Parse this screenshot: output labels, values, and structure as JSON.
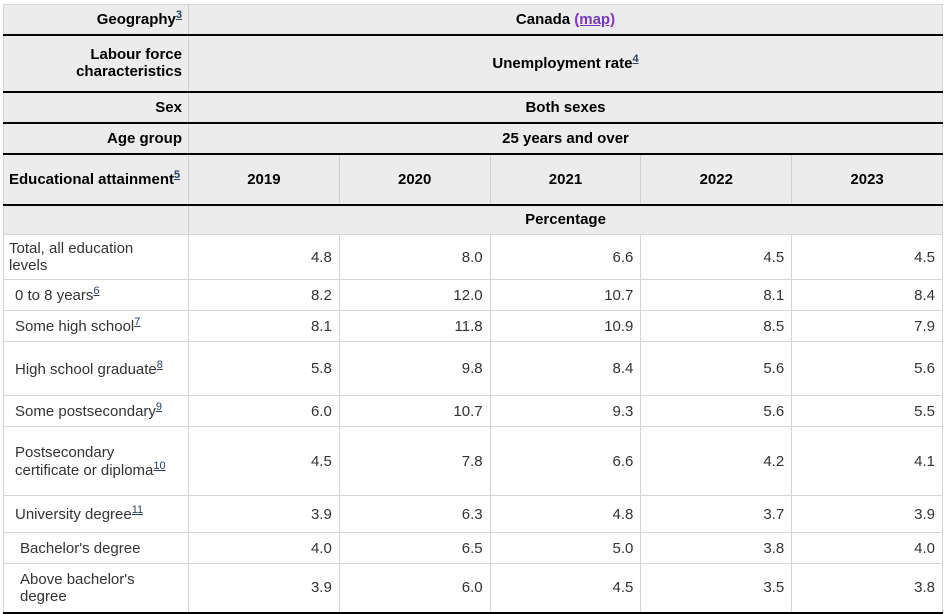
{
  "colors": {
    "header_bg": "#ececec",
    "border_dark": "#000000",
    "border_light": "#d6d6d6",
    "map_link": "#7a38bd",
    "footnote_link": "#284162",
    "text": "#333333"
  },
  "header": {
    "rows": [
      {
        "label": "Geography",
        "label_sup": "3",
        "value": "Canada",
        "value_link": "(map)"
      },
      {
        "label": "Labour force characteristics",
        "value": "Unemployment rate",
        "value_sup": "4"
      },
      {
        "label": "Sex",
        "value": "Both sexes"
      },
      {
        "label": "Age group",
        "value": "25 years and over"
      }
    ],
    "col_header": {
      "label": "Educational attainment",
      "sup": "5",
      "years": [
        "2019",
        "2020",
        "2021",
        "2022",
        "2023"
      ]
    },
    "unit_label": "Percentage"
  },
  "table": {
    "rows": [
      {
        "label": "Total, all education levels",
        "sup": "",
        "indent": 0,
        "values": [
          "4.8",
          "8.0",
          "6.6",
          "4.5",
          "4.5"
        ]
      },
      {
        "label": "0 to 8 years",
        "sup": "6",
        "indent": 1,
        "values": [
          "8.2",
          "12.0",
          "10.7",
          "8.1",
          "8.4"
        ]
      },
      {
        "label": "Some high school",
        "sup": "7",
        "indent": 1,
        "values": [
          "8.1",
          "11.8",
          "10.9",
          "8.5",
          "7.9"
        ]
      },
      {
        "label": "High school graduate",
        "sup": "8",
        "indent": 1,
        "values": [
          "5.8",
          "9.8",
          "8.4",
          "5.6",
          "5.6"
        ]
      },
      {
        "label": "Some postsecondary",
        "sup": "9",
        "indent": 1,
        "values": [
          "6.0",
          "10.7",
          "9.3",
          "5.6",
          "5.5"
        ]
      },
      {
        "label": "Postsecondary certificate or diploma",
        "sup": "10",
        "indent": 1,
        "values": [
          "4.5",
          "7.8",
          "6.6",
          "4.2",
          "4.1"
        ]
      },
      {
        "label": "University degree",
        "sup": "11",
        "indent": 1,
        "values": [
          "3.9",
          "6.3",
          "4.8",
          "3.7",
          "3.9"
        ]
      },
      {
        "label": "Bachelor's degree",
        "sup": "",
        "indent": 2,
        "values": [
          "4.0",
          "6.5",
          "5.0",
          "3.8",
          "4.0"
        ]
      },
      {
        "label": "Above bachelor's degree",
        "sup": "",
        "indent": 2,
        "values": [
          "3.9",
          "6.0",
          "4.5",
          "3.5",
          "3.8"
        ]
      }
    ]
  }
}
